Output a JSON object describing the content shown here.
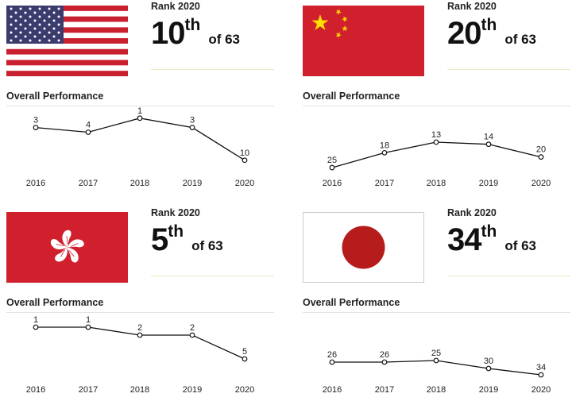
{
  "panels": [
    {
      "country": "United States",
      "flag": "usa-flag",
      "rank_label": "Rank 2020",
      "rank": "10",
      "suffix": "th",
      "of": "of 63",
      "section_title": "Overall Performance"
    },
    {
      "country": "China",
      "flag": "china-flag",
      "rank_label": "Rank 2020",
      "rank": "20",
      "suffix": "th",
      "of": "of 63",
      "section_title": "Overall Performance"
    },
    {
      "country": "Hong Kong",
      "flag": "hong-kong-flag",
      "rank_label": "Rank 2020",
      "rank": "5",
      "suffix": "th",
      "of": "of 63",
      "section_title": "Overall Performance"
    },
    {
      "country": "Japan",
      "flag": "japan-flag",
      "rank_label": "Rank 2020",
      "rank": "34",
      "suffix": "th",
      "of": "of 63",
      "section_title": "Overall Performance"
    }
  ],
  "colors": {
    "red": "#d0202e",
    "japan_red": "#b71c1c",
    "usa_blue": "#3c3b6e"
  },
  "chart_data": [
    {
      "type": "line",
      "title": "Overall Performance",
      "categories": [
        "2016",
        "2017",
        "2018",
        "2019",
        "2020"
      ],
      "values": [
        3,
        4,
        1,
        3,
        10
      ],
      "ylim": [
        -0.5,
        11.4
      ],
      "inverted": true
    },
    {
      "type": "line",
      "title": "Overall Performance",
      "categories": [
        "2016",
        "2017",
        "2018",
        "2019",
        "2020"
      ],
      "values": [
        25,
        18,
        13,
        14,
        20
      ],
      "ylim": [
        -1.6,
        24.6
      ],
      "inverted": true
    },
    {
      "type": "line",
      "title": "Overall Performance",
      "categories": [
        "2016",
        "2017",
        "2018",
        "2019",
        "2020"
      ],
      "values": [
        1,
        1,
        2,
        2,
        5
      ],
      "ylim": [
        -0.2,
        6.8
      ],
      "inverted": true
    },
    {
      "type": "line",
      "title": "Overall Performance",
      "categories": [
        "2016",
        "2017",
        "2018",
        "2019",
        "2020"
      ],
      "values": [
        26,
        26,
        25,
        30,
        34
      ],
      "ylim": [
        -2,
        33
      ],
      "inverted": true
    }
  ]
}
